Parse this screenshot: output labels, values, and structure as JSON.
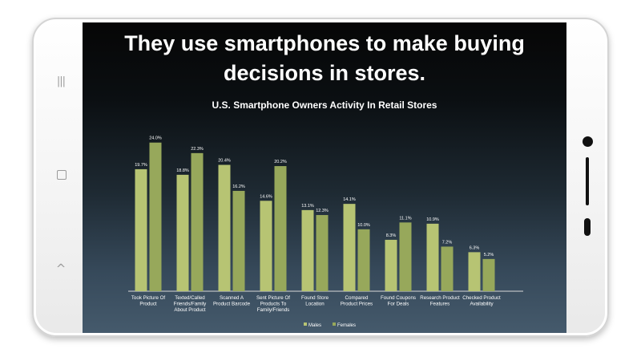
{
  "headline": {
    "line1": "They use smartphones to make buying",
    "line2": "decisions in stores."
  },
  "colors": {
    "males": "#b7c473",
    "females": "#97a85b"
  },
  "icons": {
    "menu": "|||",
    "back": "^"
  },
  "chart_data": {
    "type": "bar",
    "title": "U.S. Smartphone Owners Activity In Retail Stores",
    "xlabel": "",
    "ylabel": "",
    "ylim": [
      0,
      25
    ],
    "grid": false,
    "legend_position": "bottom",
    "categories": [
      [
        "Took Picture Of",
        "Product"
      ],
      [
        "Texted/Called",
        "Friends/Family",
        "About Product"
      ],
      [
        "Scanned A",
        "Product Barcode"
      ],
      [
        "Sent Picture Of",
        "Products To",
        "Family/Friends"
      ],
      [
        "Found Store",
        "Location"
      ],
      [
        "Compared",
        "Product Prices"
      ],
      [
        "Found Coupons",
        "For Deals"
      ],
      [
        "Research Product",
        "Features"
      ],
      [
        "Checked Product",
        "Availability"
      ]
    ],
    "series": [
      {
        "name": "Males",
        "values": [
          19.7,
          18.8,
          20.4,
          14.6,
          13.1,
          14.1,
          8.3,
          10.9,
          6.3
        ],
        "labels": [
          "19.7%",
          "18.8%",
          "20.4%",
          "14.6%",
          "13.1%",
          "14.1%",
          "8.3%",
          "10.9%",
          "6.3%"
        ]
      },
      {
        "name": "Females",
        "values": [
          24.0,
          22.3,
          16.2,
          20.2,
          12.3,
          10.0,
          11.1,
          7.2,
          5.2
        ],
        "labels": [
          "24.0%",
          "22.3%",
          "16.2%",
          "20.2%",
          "12.3%",
          "10.0%",
          "11.1%",
          "7.2%",
          "5.2%"
        ]
      }
    ]
  }
}
